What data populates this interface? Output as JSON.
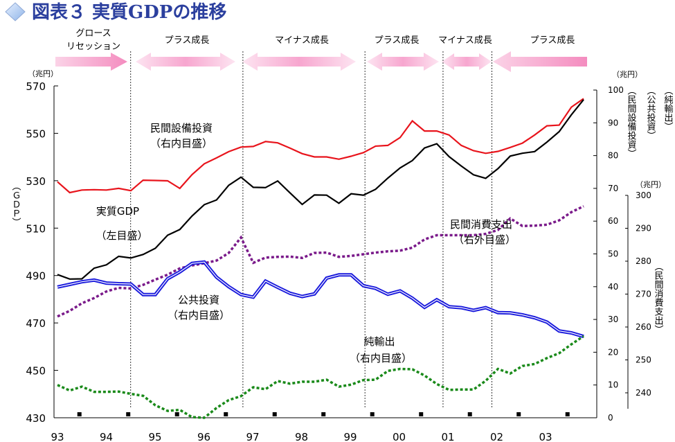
{
  "title": "図表３ 実質GDPの推移",
  "phases": [
    {
      "label": "グロース",
      "label2": "リセッション"
    },
    {
      "label": "プラス成長"
    },
    {
      "label": "マイナス成長"
    },
    {
      "label": "プラス成長"
    },
    {
      "label": "マイナス成長"
    },
    {
      "label": "プラス成長"
    }
  ],
  "units": {
    "left": "（兆円）",
    "right1": "（兆円）",
    "right2": "（兆円）"
  },
  "axis_titles": {
    "left": "（ＧＤＰ）",
    "right_capex": "（民間設備投資）",
    "right_public": "（公共投資）",
    "right_net": "（純輸出）",
    "right_consumption": "（民間消費支出）"
  },
  "series_labels": {
    "capex": "民間設備投資",
    "capex_sub": "（右内目盛）",
    "gdp": "実質GDP",
    "gdp_sub": "（左目盛）",
    "consumption": "民間消費支出",
    "consumption_sub": "（右外目盛）",
    "public": "公共投資",
    "public_sub": "（右内目盛）",
    "net": "純輸出",
    "net_sub": "（右内目盛）"
  },
  "chart_data": {
    "type": "line",
    "x_tick_labels": [
      "93",
      "94",
      "95",
      "96",
      "97",
      "98",
      "99",
      "00",
      "01",
      "02",
      "03"
    ],
    "x_start_year": 1993,
    "quarters_per_year": 4,
    "left_axis": {
      "min": 430,
      "max": 570,
      "ticks": [
        570,
        550,
        530,
        510,
        490,
        470,
        450,
        430
      ]
    },
    "right_inner_axis": {
      "min": 0,
      "max": 100,
      "ticks": [
        100,
        90,
        80,
        70,
        60,
        50,
        40,
        30,
        20,
        10,
        0
      ]
    },
    "right_outer_axis": {
      "min": 240,
      "max": 300,
      "ticks": [
        300,
        290,
        280,
        270,
        260,
        250,
        240
      ]
    },
    "phase_boundaries_year": [
      1994.5,
      1996.8,
      1999.3,
      2000.9,
      2001.9
    ],
    "colors": {
      "gdp": "#000000",
      "capex": "#e8141c",
      "public": "#1a1adc",
      "net": "#1a8a1a",
      "consumption": "#7a1a8a"
    },
    "series": [
      {
        "key": "gdp",
        "name": "実質GDP",
        "axis": "left",
        "values": [
          490.4,
          488.5,
          488.6,
          493.1,
          494.5,
          498.1,
          497.4,
          498.9,
          501.5,
          507.0,
          509.4,
          515.1,
          519.9,
          521.9,
          528.1,
          531.5,
          527.2,
          527.1,
          529.9,
          524.9,
          520.0,
          524.0,
          523.9,
          520.5,
          524.5,
          523.9,
          526.4,
          531.1,
          535.4,
          538.5,
          543.8,
          545.6,
          540.2,
          536.2,
          532.5,
          531.0,
          535.1,
          540.4,
          541.6,
          542.3,
          546.3,
          550.7,
          557.8,
          564.2
        ]
      },
      {
        "key": "capex",
        "name": "民間設備投資",
        "axis": "right_inner",
        "values": [
          72.0,
          68.7,
          69.5,
          69.6,
          69.5,
          70.0,
          69.3,
          72.5,
          72.4,
          72.3,
          70.0,
          74.2,
          77.5,
          79.3,
          81.2,
          82.6,
          82.8,
          84.3,
          83.9,
          82.3,
          80.6,
          79.6,
          79.6,
          78.9,
          79.8,
          80.9,
          82.9,
          83.1,
          85.5,
          90.6,
          87.5,
          87.5,
          86.3,
          83.1,
          81.5,
          80.7,
          81.3,
          82.5,
          83.8,
          86.3,
          89.1,
          89.3,
          94.8,
          97.4
        ]
      },
      {
        "key": "public",
        "name": "公共投資",
        "axis": "right_inner",
        "values": [
          39.9,
          40.7,
          41.5,
          42.0,
          41.1,
          40.9,
          40.8,
          37.6,
          37.6,
          42.4,
          44.5,
          47.1,
          47.5,
          42.9,
          40.0,
          37.6,
          36.8,
          41.7,
          39.8,
          38.0,
          37.0,
          37.8,
          42.6,
          43.6,
          43.6,
          40.3,
          39.5,
          37.7,
          38.7,
          36.5,
          33.7,
          36.0,
          33.9,
          33.6,
          32.8,
          33.6,
          32.1,
          32.0,
          31.4,
          30.5,
          29.2,
          26.5,
          25.9,
          24.8
        ]
      },
      {
        "key": "net",
        "name": "純輸出",
        "axis": "right_inner",
        "values": [
          10.0,
          8.3,
          9.5,
          7.9,
          7.9,
          8.0,
          7.3,
          6.7,
          3.8,
          2.1,
          2.4,
          0.2,
          0.0,
          3.0,
          5.4,
          6.6,
          9.3,
          8.7,
          11.2,
          10.4,
          11.0,
          11.0,
          11.6,
          9.5,
          10.1,
          11.5,
          11.6,
          14.3,
          14.9,
          14.8,
          12.9,
          10.3,
          8.5,
          8.6,
          8.6,
          11.3,
          14.9,
          13.5,
          15.8,
          16.4,
          18.2,
          19.7,
          22.4,
          24.9
        ]
      },
      {
        "key": "consumption",
        "name": "民間消費支出",
        "axis": "right_outer",
        "values": [
          263.2,
          264.9,
          267.2,
          268.8,
          270.8,
          271.9,
          271.7,
          272.8,
          274.4,
          275.9,
          277.8,
          278.7,
          279.4,
          280.2,
          282.5,
          287.2,
          279.5,
          281.1,
          281.3,
          281.4,
          281.0,
          282.5,
          282.6,
          281.3,
          281.6,
          282.1,
          282.6,
          283.0,
          283.2,
          284.1,
          286.6,
          287.9,
          287.9,
          287.9,
          287.9,
          288.3,
          289.5,
          293.0,
          290.7,
          290.8,
          291.1,
          292.4,
          294.9,
          296.7
        ]
      }
    ]
  }
}
